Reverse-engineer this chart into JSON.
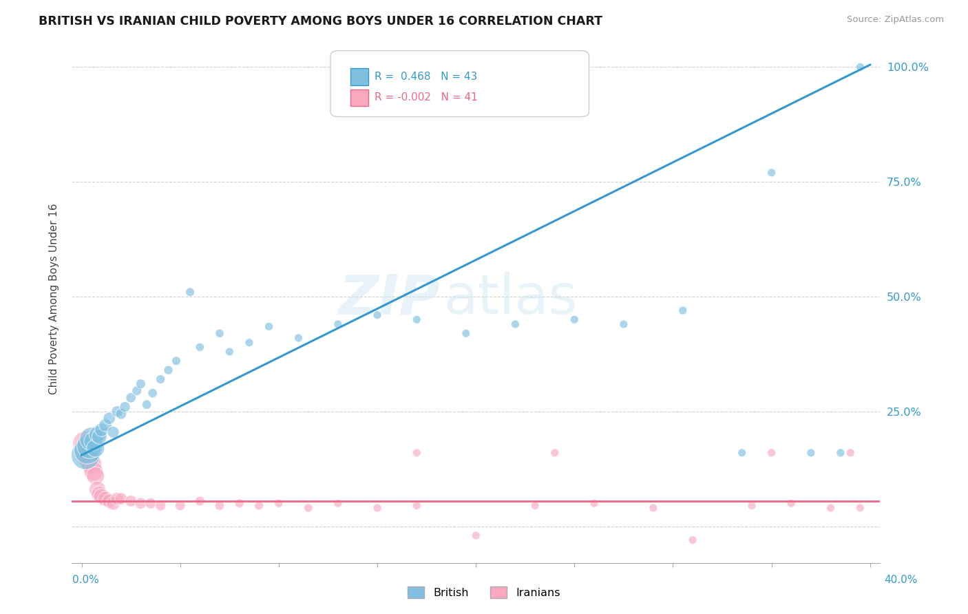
{
  "title": "BRITISH VS IRANIAN CHILD POVERTY AMONG BOYS UNDER 16 CORRELATION CHART",
  "source": "Source: ZipAtlas.com",
  "ylabel": "Child Poverty Among Boys Under 16",
  "xlim": [
    -0.005,
    0.405
  ],
  "ylim": [
    -0.08,
    1.07
  ],
  "r_british": 0.468,
  "n_british": 43,
  "r_iranian": -0.002,
  "n_iranian": 41,
  "british_color": "#7fbfdf",
  "iranian_color": "#f9a8c0",
  "british_line_color": "#3399cc",
  "iranian_line_color": "#ee6688",
  "watermark_zip": "ZIP",
  "watermark_atlas": "atlas",
  "grid_color": "#cccccc",
  "background_color": "#ffffff",
  "british_line_x0": 0.0,
  "british_line_y0": 0.155,
  "british_line_x1": 0.4,
  "british_line_y1": 1.005,
  "iranian_line_y": 0.055,
  "british_x": [
    0.002,
    0.003,
    0.004,
    0.005,
    0.006,
    0.007,
    0.008,
    0.009,
    0.01,
    0.012,
    0.014,
    0.016,
    0.018,
    0.02,
    0.022,
    0.025,
    0.028,
    0.03,
    0.033,
    0.036,
    0.04,
    0.044,
    0.048,
    0.055,
    0.06,
    0.07,
    0.075,
    0.085,
    0.095,
    0.11,
    0.13,
    0.15,
    0.17,
    0.195,
    0.22,
    0.25,
    0.275,
    0.305,
    0.335,
    0.35,
    0.37,
    0.385,
    0.395
  ],
  "british_y": [
    0.155,
    0.165,
    0.175,
    0.19,
    0.185,
    0.17,
    0.2,
    0.195,
    0.21,
    0.22,
    0.235,
    0.205,
    0.25,
    0.245,
    0.26,
    0.28,
    0.295,
    0.31,
    0.265,
    0.29,
    0.32,
    0.34,
    0.36,
    0.51,
    0.39,
    0.42,
    0.38,
    0.4,
    0.435,
    0.41,
    0.44,
    0.46,
    0.45,
    0.42,
    0.44,
    0.45,
    0.44,
    0.47,
    0.16,
    0.77,
    0.16,
    0.16,
    1.0
  ],
  "iranian_x": [
    0.002,
    0.003,
    0.004,
    0.005,
    0.006,
    0.007,
    0.008,
    0.009,
    0.01,
    0.012,
    0.014,
    0.016,
    0.018,
    0.02,
    0.025,
    0.03,
    0.035,
    0.04,
    0.05,
    0.06,
    0.07,
    0.08,
    0.09,
    0.1,
    0.115,
    0.13,
    0.15,
    0.17,
    0.2,
    0.23,
    0.26,
    0.29,
    0.31,
    0.34,
    0.36,
    0.38,
    0.39,
    0.395,
    0.24,
    0.17,
    0.35
  ],
  "iranian_y": [
    0.18,
    0.155,
    0.145,
    0.135,
    0.12,
    0.11,
    0.08,
    0.07,
    0.065,
    0.06,
    0.055,
    0.05,
    0.06,
    0.06,
    0.055,
    0.05,
    0.05,
    0.045,
    0.045,
    0.055,
    0.045,
    0.05,
    0.045,
    0.05,
    0.04,
    0.05,
    0.04,
    0.045,
    -0.02,
    0.045,
    0.05,
    0.04,
    -0.03,
    0.045,
    0.05,
    0.04,
    0.16,
    0.04,
    0.16,
    0.16,
    0.16
  ],
  "british_sizes": [
    900,
    800,
    700,
    600,
    400,
    350,
    300,
    250,
    200,
    180,
    160,
    150,
    140,
    130,
    120,
    110,
    100,
    100,
    95,
    95,
    90,
    90,
    85,
    85,
    80,
    80,
    75,
    75,
    75,
    75,
    75,
    75,
    75,
    75,
    75,
    75,
    75,
    75,
    75,
    75,
    75,
    75,
    75
  ],
  "iranian_sizes": [
    700,
    600,
    500,
    450,
    400,
    350,
    300,
    280,
    260,
    240,
    220,
    200,
    180,
    160,
    150,
    140,
    130,
    120,
    110,
    100,
    95,
    90,
    85,
    80,
    80,
    75,
    75,
    75,
    75,
    75,
    75,
    75,
    75,
    75,
    75,
    75,
    75,
    75,
    75,
    75,
    75
  ]
}
